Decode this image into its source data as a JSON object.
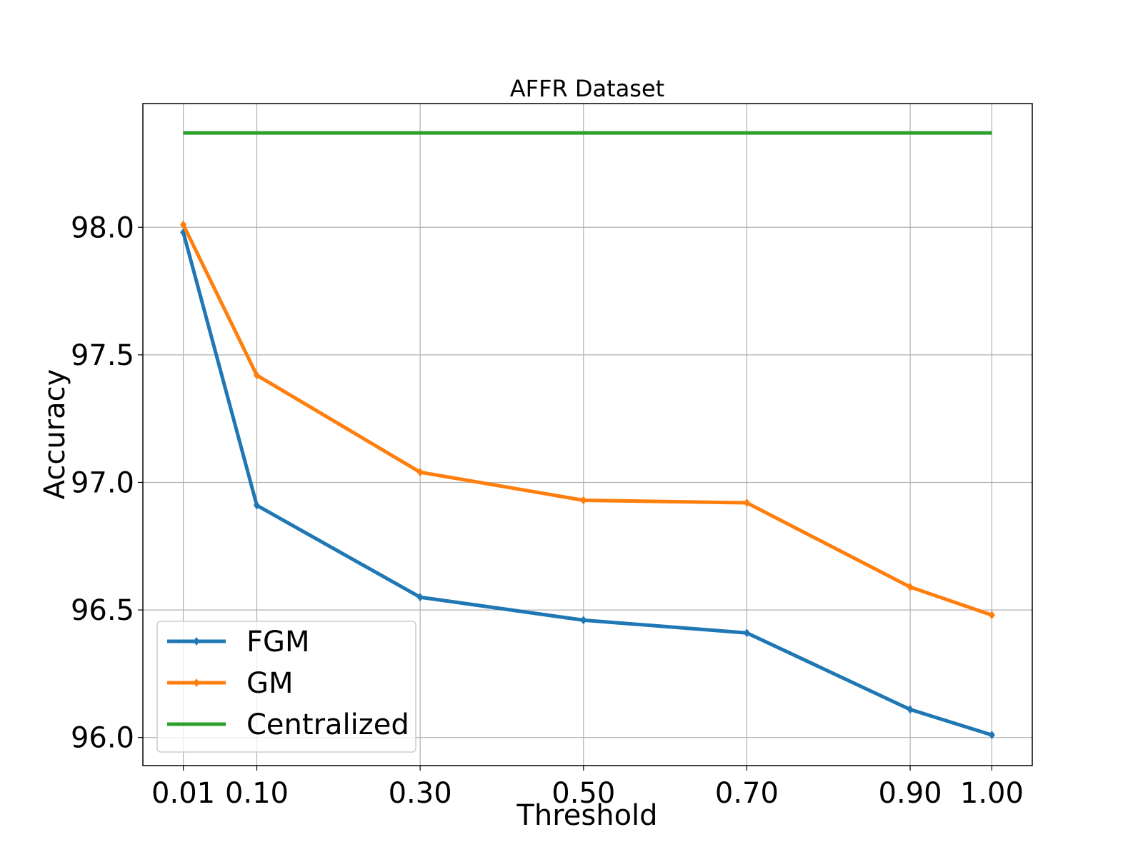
{
  "chart_data": {
    "type": "line",
    "title": "AFFR Dataset",
    "xlabel": "Threshold",
    "ylabel": "Accuracy",
    "x": [
      0.01,
      0.1,
      0.3,
      0.5,
      0.7,
      0.9,
      1.0
    ],
    "x_tick_labels": [
      "0.01",
      "0.10",
      "0.30",
      "0.50",
      "0.70",
      "0.90",
      "1.00"
    ],
    "y_ticks": [
      96.0,
      96.5,
      97.0,
      97.5,
      98.0
    ],
    "y_tick_labels": [
      "96.0",
      "96.5",
      "97.0",
      "97.5",
      "98.0"
    ],
    "xlim": [
      -0.0395,
      1.0495
    ],
    "ylim": [
      95.89,
      98.485
    ],
    "grid": true,
    "legend_position": "lower-left",
    "series": [
      {
        "name": "FGM",
        "color": "#1f77b4",
        "marker": "diamond",
        "values": [
          97.98,
          96.91,
          96.55,
          96.46,
          96.41,
          96.11,
          96.01
        ]
      },
      {
        "name": "GM",
        "color": "#ff7f0e",
        "marker": "diamond",
        "values": [
          98.01,
          97.42,
          97.04,
          96.93,
          96.92,
          96.59,
          96.48
        ]
      },
      {
        "name": "Centralized",
        "color": "#2ca02c",
        "marker": "none",
        "values": [
          98.37,
          98.37,
          98.37,
          98.37,
          98.37,
          98.37,
          98.37
        ]
      }
    ]
  }
}
